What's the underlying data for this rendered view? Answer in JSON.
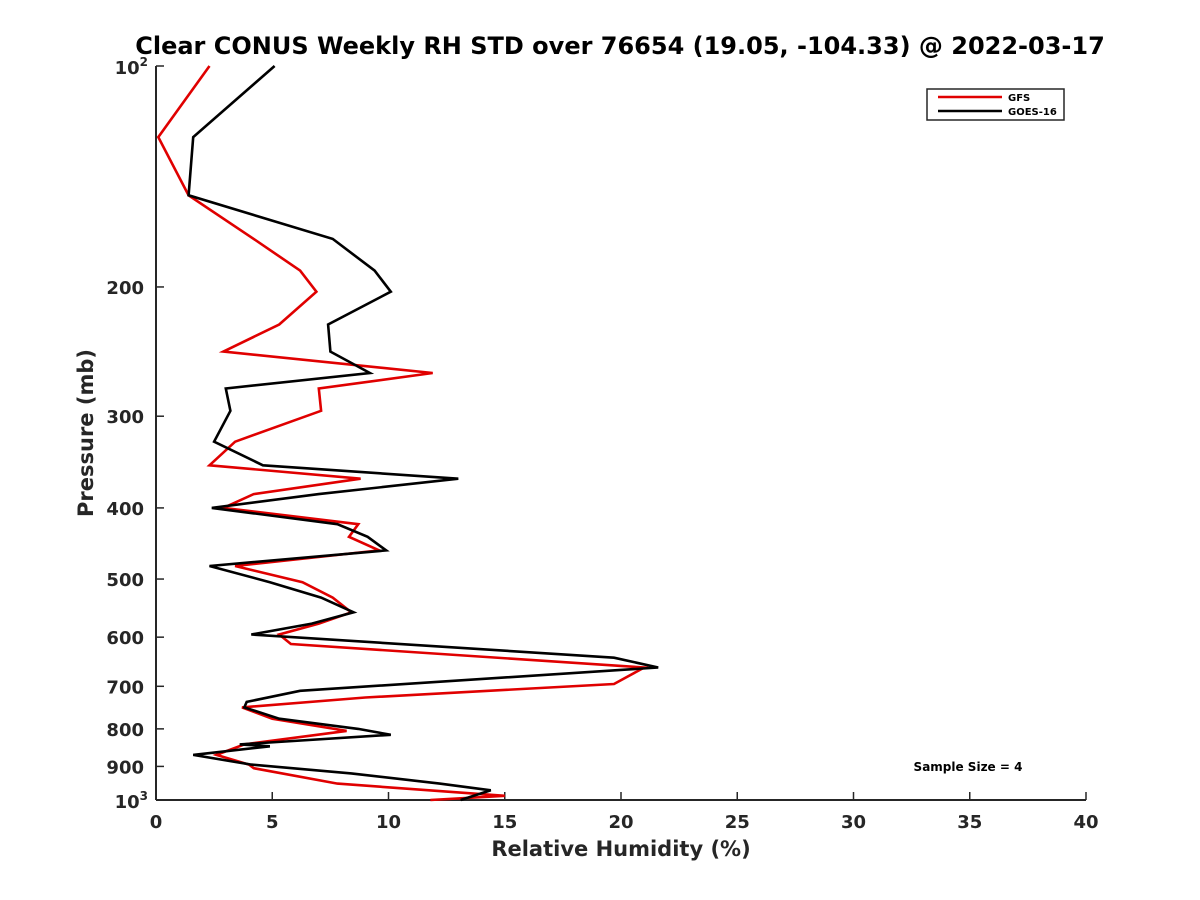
{
  "chart_data": {
    "type": "line",
    "title": "Clear CONUS Weekly RH STD over 76654 (19.05, -104.33) @ 2022-03-17",
    "xlabel": "Relative Humidity (%)",
    "ylabel": "Pressure (mb)",
    "xlim": [
      0,
      40
    ],
    "ylim": [
      100,
      1000
    ],
    "yscale": "log",
    "yreverse": true,
    "x_ticks": [
      0,
      5,
      10,
      15,
      20,
      25,
      30,
      35,
      40
    ],
    "x_tick_labels": [
      "0",
      "5",
      "10",
      "15",
      "20",
      "25",
      "30",
      "35",
      "40"
    ],
    "y_ticks": [
      100,
      200,
      300,
      400,
      500,
      600,
      700,
      800,
      900,
      1000
    ],
    "y_tick_labels": [
      "",
      "200",
      "300",
      "400",
      "500",
      "600",
      "700",
      "800",
      "900",
      ""
    ],
    "y_tick_top": {
      "base": "10",
      "exp": "2"
    },
    "y_tick_bottom": {
      "base": "10",
      "exp": "3"
    },
    "grid": false,
    "legend_position": "top-right",
    "annotation": "Sample Size = 4",
    "series": [
      {
        "name": "GFS",
        "color": "#e00000",
        "x": [
          2.3,
          0.1,
          1.4,
          4.2,
          6.2,
          6.9,
          5.3,
          2.9,
          11.9,
          7.0,
          7.1,
          3.4,
          2.3,
          8.8,
          4.2,
          2.9,
          8.7,
          8.3,
          9.6,
          3.4,
          6.3,
          7.6,
          8.4,
          7.0,
          5.3,
          5.8,
          21.0,
          19.7,
          9.0,
          3.7,
          5.0,
          8.2,
          3.8,
          2.6,
          4.0,
          4.2,
          7.8,
          15.0,
          11.8
        ],
        "y": [
          100,
          125,
          150,
          172,
          190,
          203,
          225,
          245,
          262,
          275,
          295,
          325,
          350,
          365,
          383,
          400,
          421,
          438,
          457,
          480,
          505,
          530,
          555,
          575,
          595,
          613,
          660,
          695,
          725,
          748,
          775,
          805,
          840,
          868,
          895,
          905,
          950,
          987,
          1000
        ]
      },
      {
        "name": "GOES-16",
        "color": "#000000",
        "x": [
          5.1,
          1.6,
          1.4,
          7.6,
          9.4,
          10.1,
          7.4,
          7.5,
          9.2,
          3.0,
          3.2,
          2.5,
          4.6,
          13.0,
          7.0,
          2.4,
          7.8,
          9.1,
          9.9,
          2.3,
          4.9,
          7.1,
          8.5,
          6.7,
          4.1,
          19.7,
          21.6,
          6.2,
          3.9,
          3.8,
          5.3,
          8.7,
          10.1,
          3.6,
          4.9,
          1.6,
          4.1,
          8.4,
          12.2,
          14.4,
          13.1
        ],
        "y": [
          100,
          125,
          150,
          172,
          190,
          203,
          225,
          245,
          262,
          275,
          295,
          325,
          350,
          365,
          383,
          400,
          421,
          438,
          457,
          480,
          505,
          530,
          555,
          575,
          595,
          640,
          660,
          710,
          735,
          748,
          775,
          800,
          815,
          840,
          845,
          868,
          895,
          920,
          950,
          970,
          1000
        ]
      }
    ]
  }
}
